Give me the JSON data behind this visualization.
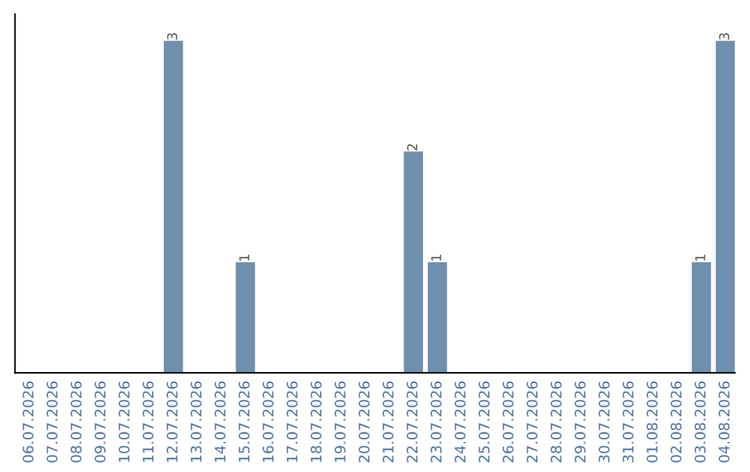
{
  "chart_data": {
    "type": "bar",
    "categories": [
      "06.07.2026",
      "07.07.2026",
      "08.07.2026",
      "09.07.2026",
      "10.07.2026",
      "11.07.2026",
      "12.07.2026",
      "13.07.2026",
      "14.07.2026",
      "15.07.2026",
      "16.07.2026",
      "17.07.2026",
      "18.07.2026",
      "19.07.2026",
      "20.07.2026",
      "21.07.2026",
      "22.07.2026",
      "23.07.2026",
      "24.07.2026",
      "25.07.2026",
      "26.07.2026",
      "27.07.2026",
      "28.07.2026",
      "29.07.2026",
      "30.07.2026",
      "31.07.2026",
      "01.08.2026",
      "02.08.2026",
      "03.08.2026",
      "04.08.2026"
    ],
    "values": [
      0,
      0,
      0,
      0,
      0,
      0,
      3,
      0,
      0,
      1,
      0,
      0,
      0,
      0,
      0,
      0,
      2,
      1,
      0,
      0,
      0,
      0,
      0,
      0,
      0,
      0,
      0,
      0,
      1,
      3
    ],
    "value_labels": [
      null,
      null,
      null,
      null,
      null,
      null,
      "3",
      null,
      null,
      "1",
      null,
      null,
      null,
      null,
      null,
      null,
      "2",
      "1",
      null,
      null,
      null,
      null,
      null,
      null,
      null,
      null,
      null,
      null,
      "1",
      "3"
    ],
    "color": "#6e8fae",
    "tick_labels": "x",
    "grid": false,
    "legend": false
  }
}
